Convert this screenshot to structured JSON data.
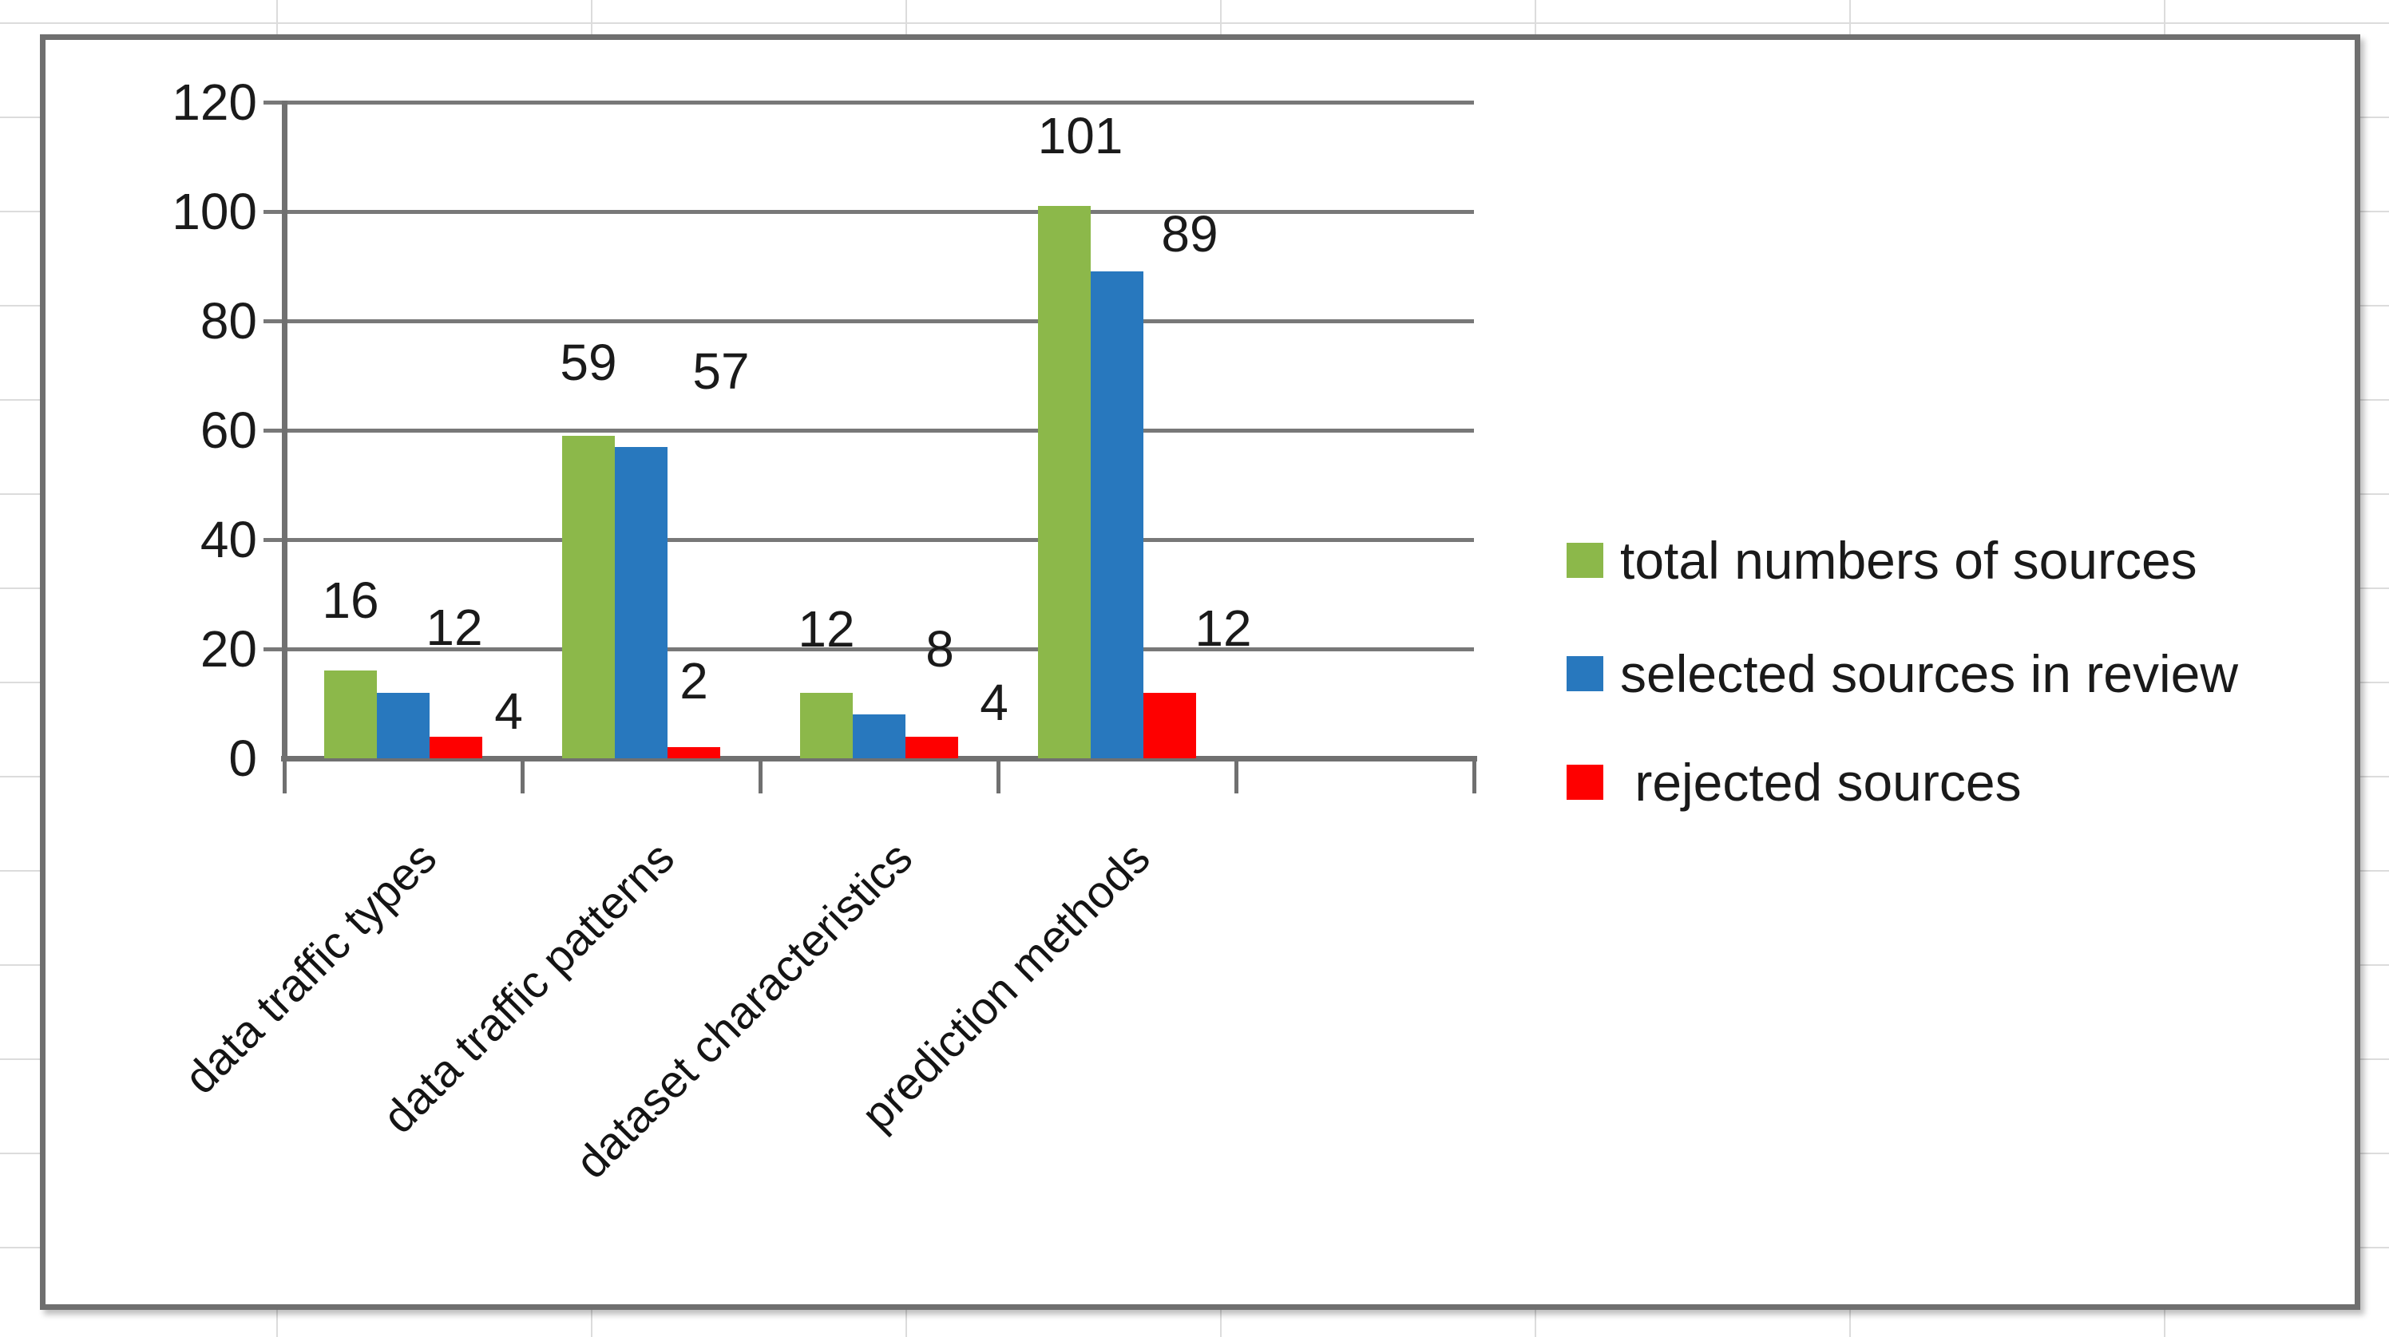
{
  "chart_data": {
    "type": "bar",
    "title": "",
    "categories": [
      "data traffic types",
      "data traffic patterns",
      "dataset characteristics",
      "prediction methods"
    ],
    "series": [
      {
        "name": "total numbers of sources",
        "color": "#8CB84A",
        "values": [
          16,
          59,
          12,
          101
        ]
      },
      {
        "name": "selected sources in review",
        "color": "#2878BE",
        "values": [
          12,
          57,
          8,
          89
        ]
      },
      {
        "name": " rejected sources",
        "color": "#FE0000",
        "values": [
          4,
          2,
          4,
          12
        ]
      }
    ],
    "data_labels": [
      [
        16,
        12,
        4
      ],
      [
        59,
        57,
        2
      ],
      [
        12,
        8,
        4
      ],
      [
        101,
        89,
        12
      ]
    ],
    "xlabel": "",
    "ylabel": "",
    "ylim": [
      0,
      120
    ],
    "yticks": [
      0,
      20,
      40,
      60,
      80,
      100,
      120
    ],
    "grid": "horizontal",
    "legend_position": "right",
    "gridline_color": "#787878",
    "text_color": "#1a1a1a"
  }
}
